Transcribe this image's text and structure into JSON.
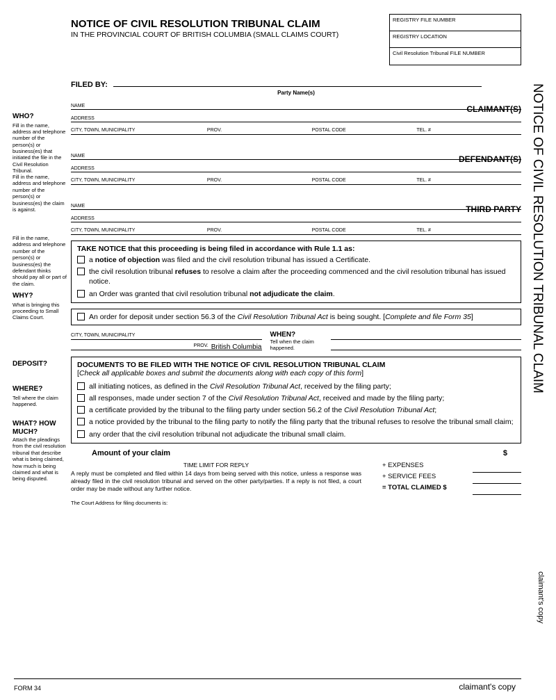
{
  "title": "NOTICE OF CIVIL RESOLUTION TRIBUNAL CLAIM",
  "subtitle": "IN THE PROVINCIAL COURT OF BRITISH COLUMBIA (SMALL CLAIMS COURT)",
  "registry": {
    "file_num": "REGISTRY FILE NUMBER",
    "location": "REGISTRY LOCATION",
    "crt_num": "Civil Resolution Tribunal FILE NUMBER"
  },
  "filed_by": "FILED BY:",
  "party_names": "Party Name(s)",
  "who": {
    "q": "WHO?",
    "t1": "Fill in the name, address and telephone number of the person(s) or business(es) that initiated the file in the Civil Resolution Tribunal.",
    "t2": "Fill in the name, address and telephone number of the person(s) or business(es) the claim is against.",
    "t3": "Fill in the name, address and telephone number of the person(s) or business(es) the defendant thinks should pay all or part of the claim."
  },
  "why": {
    "q": "WHY?",
    "t": "What is bringing this proceeding to Small Claims Court."
  },
  "deposit": {
    "q": "DEPOSIT?"
  },
  "where": {
    "q": "WHERE?",
    "t": "Tell where the claim happened."
  },
  "when": {
    "q": "WHEN?",
    "t": "Tell when the claim happened."
  },
  "what": {
    "q": "WHAT? HOW MUCH?",
    "t": "Attach the pleadings from the civil resolution tribunal that describe what is being claimed, how much is being claimed and what is being disputed."
  },
  "parties": {
    "claimant": "CLAIMANT(S)",
    "defendant": "DEFENDANT(S)",
    "third": "THIRD PARTY"
  },
  "labels": {
    "name": "NAME",
    "address": "ADDRESS",
    "city": "CITY, TOWN, MUNICIPALITY",
    "prov": "PROV.",
    "postal": "POSTAL CODE",
    "tel": "TEL. #",
    "bc": "British Columbia"
  },
  "take_notice": {
    "heading": "TAKE NOTICE that this proceeding is being filed in accordance with Rule 1.1 as:",
    "items": [
      "a <b>notice of objection</b> was filed and the civil resolution tribunal has issued a Certificate.",
      "the civil resolution tribunal <b>refuses</b> to resolve a claim after the proceeding commenced and the civil resolution tribunal has issued notice.",
      "an Order was granted that civil resolution tribunal <b>not adjudicate the claim</b>."
    ]
  },
  "deposit_line": "An order for deposit under section 56.3 of the <i>Civil Resolution Tribunal Act</i> is being sought.  [<i>Complete and file Form 35</i>]",
  "docs": {
    "heading": "DOCUMENTS TO BE FILED WITH THE NOTICE OF CIVIL RESOLUTION TRIBUNAL CLAIM",
    "sub": "[<i>Check all applicable boxes and submit the documents along with each copy of this form</i>]",
    "items": [
      "all initiating notices, as defined in the <i>Civil Resolution Tribunal Act</i>, received by the filing party;",
      "all responses, made under section 7 of the <i>Civil Resolution Tribunal Act</i>, received and made by the filing party;",
      "a certificate provided by the tribunal to the filing party under section 56.2 of the <i>Civil Resolution Tribunal Act</i>;",
      "a notice provided by the tribunal to the filing party to notify the filing party that the tribunal refuses to resolve the tribunal small claim;",
      "any order that the civil resolution tribunal not adjudicate the tribunal small claim."
    ]
  },
  "amount": "Amount of your claim",
  "totals": {
    "expenses": "+ EXPENSES",
    "fees": "+ SERVICE FEES",
    "total": "= TOTAL CLAIMED  $"
  },
  "time_limit": {
    "title": "TIME LIMIT FOR REPLY",
    "body": "A reply must be completed and filed within 14 days from being served with this notice, unless a response was already filed in the civil resolution tribunal and served on the other party/parties.  If a reply is not filed, a court order may be made without any further notice.",
    "court": "The Court Address for filing documents is:"
  },
  "form": "FORM 34",
  "copy": "claimant's copy",
  "vert_title": "NOTICE OF CIVIL RESOLUTION TRIBUNAL CLAIM"
}
